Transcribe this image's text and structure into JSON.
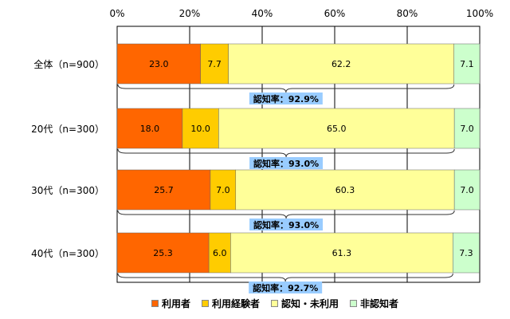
{
  "chart_data": {
    "type": "bar",
    "stacked": true,
    "orientation": "horizontal",
    "categories": [
      "全体（n=900）",
      "20代（n=300）",
      "30代（n=300）",
      "40代（n=300）"
    ],
    "series": [
      {
        "name": "利用者",
        "color": "#ff6600",
        "values": [
          23.0,
          18.0,
          25.7,
          25.3
        ],
        "labels": [
          "23.0",
          "18.0",
          "25.7",
          "25.3"
        ]
      },
      {
        "name": "利用経験者",
        "color": "#ffcc00",
        "values": [
          7.7,
          10.0,
          7.0,
          6.0
        ],
        "labels": [
          "7.7",
          "10.0",
          "7.0",
          "6.0"
        ]
      },
      {
        "name": "認知・未利用",
        "color": "#ffff99",
        "values": [
          62.2,
          65.0,
          60.3,
          61.3
        ],
        "labels": [
          "62.2",
          "65.0",
          "60.3",
          "61.3"
        ]
      },
      {
        "name": "非認知者",
        "color": "#ccffcc",
        "values": [
          7.1,
          7.0,
          7.0,
          7.3
        ],
        "labels": [
          "7.1",
          "7.0",
          "7.0",
          "7.3"
        ]
      }
    ],
    "annotations": [
      "認知率：92.9%",
      "認知率：93.0%",
      "認知率：93.0%",
      "認知率：92.7%"
    ],
    "x_ticks": [
      "0%",
      "20%",
      "40%",
      "60%",
      "80%",
      "100%"
    ],
    "xlim": [
      0,
      100
    ],
    "grid": true,
    "legend": "bottom",
    "annotation_color": "#99ccff"
  }
}
